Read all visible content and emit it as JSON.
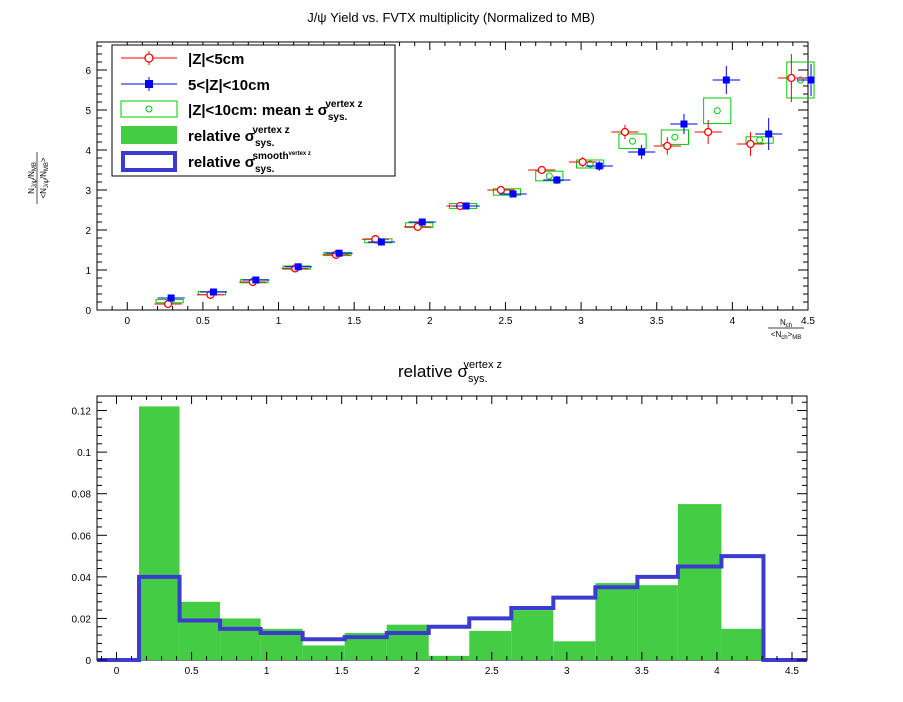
{
  "chart_data": [
    {
      "type": "scatter",
      "title": "J/ψ Yield vs. FVTX multiplicity (Normalized to MB)",
      "xlabel": "N_ch / <N_ch>_MB",
      "ylabel": "(N_J/ψ / N_MB) / <N_J/ψ / N_MB>",
      "xlim": [
        -0.2,
        4.5
      ],
      "ylim": [
        0,
        6.7
      ],
      "xticks": [
        0,
        0.5,
        1,
        1.5,
        2,
        2.5,
        3,
        3.5,
        4,
        4.5
      ],
      "yticks": [
        0,
        1,
        2,
        3,
        4,
        5,
        6
      ],
      "legend_position": "top-left",
      "legend": [
        {
          "label": "|Z|<5cm",
          "marker": "open-circle",
          "color": "#ff0000"
        },
        {
          "label": "5<|Z|<10cm",
          "marker": "filled-square",
          "color": "#0000ff"
        },
        {
          "label": "|Z|<10cm: mean ± σ",
          "sup": "vertex z",
          "sub": "sys.",
          "marker": "open-box",
          "color": "#00cc00"
        },
        {
          "label": "relative σ",
          "sup": "vertex z",
          "sub": "sys.",
          "marker": "filled-box",
          "color": "#44cc44"
        },
        {
          "label": "relative σ",
          "sup": "smooth",
          "supsup": "vertex z",
          "sub": "sys.",
          "marker": "hollow-box",
          "color": "#3b3bcf"
        }
      ],
      "series": [
        {
          "name": "|Z|<5cm",
          "color": "#ff0000",
          "points": [
            {
              "x": 0.27,
              "y": 0.15,
              "xerr": 0.09,
              "yerr": 0.1
            },
            {
              "x": 0.55,
              "y": 0.38,
              "xerr": 0.09,
              "yerr": 0.05
            },
            {
              "x": 0.83,
              "y": 0.7,
              "xerr": 0.09,
              "yerr": 0.05
            },
            {
              "x": 1.11,
              "y": 1.04,
              "xerr": 0.09,
              "yerr": 0.05
            },
            {
              "x": 1.38,
              "y": 1.38,
              "xerr": 0.09,
              "yerr": 0.05
            },
            {
              "x": 1.64,
              "y": 1.77,
              "xerr": 0.09,
              "yerr": 0.06
            },
            {
              "x": 1.92,
              "y": 2.08,
              "xerr": 0.09,
              "yerr": 0.06
            },
            {
              "x": 2.2,
              "y": 2.6,
              "xerr": 0.09,
              "yerr": 0.07
            },
            {
              "x": 2.47,
              "y": 3.0,
              "xerr": 0.09,
              "yerr": 0.08
            },
            {
              "x": 2.74,
              "y": 3.5,
              "xerr": 0.09,
              "yerr": 0.1
            },
            {
              "x": 3.01,
              "y": 3.7,
              "xerr": 0.09,
              "yerr": 0.12
            },
            {
              "x": 3.29,
              "y": 4.45,
              "xerr": 0.09,
              "yerr": 0.18
            },
            {
              "x": 3.57,
              "y": 4.1,
              "xerr": 0.09,
              "yerr": 0.22
            },
            {
              "x": 3.84,
              "y": 4.45,
              "xerr": 0.09,
              "yerr": 0.3
            },
            {
              "x": 4.12,
              "y": 4.15,
              "xerr": 0.09,
              "yerr": 0.3
            },
            {
              "x": 4.39,
              "y": 5.8,
              "xerr": 0.09,
              "yerr": 0.6
            }
          ]
        },
        {
          "name": "5<|Z|<10cm",
          "color": "#0000ff",
          "points": [
            {
              "x": 0.29,
              "y": 0.3,
              "xerr": 0.09,
              "yerr": 0.06
            },
            {
              "x": 0.57,
              "y": 0.45,
              "xerr": 0.09,
              "yerr": 0.05
            },
            {
              "x": 0.85,
              "y": 0.75,
              "xerr": 0.09,
              "yerr": 0.05
            },
            {
              "x": 1.13,
              "y": 1.08,
              "xerr": 0.09,
              "yerr": 0.05
            },
            {
              "x": 1.4,
              "y": 1.42,
              "xerr": 0.09,
              "yerr": 0.05
            },
            {
              "x": 1.68,
              "y": 1.7,
              "xerr": 0.09,
              "yerr": 0.06
            },
            {
              "x": 1.95,
              "y": 2.2,
              "xerr": 0.09,
              "yerr": 0.06
            },
            {
              "x": 2.24,
              "y": 2.6,
              "xerr": 0.09,
              "yerr": 0.07
            },
            {
              "x": 2.55,
              "y": 2.9,
              "xerr": 0.09,
              "yerr": 0.08
            },
            {
              "x": 2.84,
              "y": 3.25,
              "xerr": 0.09,
              "yerr": 0.1
            },
            {
              "x": 3.12,
              "y": 3.6,
              "xerr": 0.09,
              "yerr": 0.12
            },
            {
              "x": 3.4,
              "y": 3.95,
              "xerr": 0.09,
              "yerr": 0.18
            },
            {
              "x": 3.68,
              "y": 4.65,
              "xerr": 0.09,
              "yerr": 0.25
            },
            {
              "x": 3.96,
              "y": 5.75,
              "xerr": 0.09,
              "yerr": 0.35
            },
            {
              "x": 4.24,
              "y": 4.4,
              "xerr": 0.09,
              "yerr": 0.4
            },
            {
              "x": 4.52,
              "y": 5.75,
              "xerr": 0.09,
              "yerr": 0.4
            }
          ]
        },
        {
          "name": "|Z|<10cm: mean ± σ sys. vertex z",
          "color": "#00cc00",
          "points": [
            {
              "x": 0.28,
              "y": 0.22,
              "xerr": 0.09,
              "yerr": 0.04
            },
            {
              "x": 0.56,
              "y": 0.42,
              "xerr": 0.09,
              "yerr": 0.04
            },
            {
              "x": 0.84,
              "y": 0.72,
              "xerr": 0.09,
              "yerr": 0.04
            },
            {
              "x": 1.12,
              "y": 1.06,
              "xerr": 0.09,
              "yerr": 0.04
            },
            {
              "x": 1.39,
              "y": 1.4,
              "xerr": 0.09,
              "yerr": 0.04
            },
            {
              "x": 1.66,
              "y": 1.73,
              "xerr": 0.09,
              "yerr": 0.05
            },
            {
              "x": 1.93,
              "y": 2.12,
              "xerr": 0.09,
              "yerr": 0.06
            },
            {
              "x": 2.22,
              "y": 2.6,
              "xerr": 0.09,
              "yerr": 0.06
            },
            {
              "x": 2.51,
              "y": 2.95,
              "xerr": 0.09,
              "yerr": 0.08
            },
            {
              "x": 2.79,
              "y": 3.35,
              "xerr": 0.09,
              "yerr": 0.12
            },
            {
              "x": 3.06,
              "y": 3.65,
              "xerr": 0.09,
              "yerr": 0.1
            },
            {
              "x": 3.34,
              "y": 4.22,
              "xerr": 0.09,
              "yerr": 0.18
            },
            {
              "x": 3.62,
              "y": 4.32,
              "xerr": 0.09,
              "yerr": 0.18
            },
            {
              "x": 3.9,
              "y": 4.98,
              "xerr": 0.09,
              "yerr": 0.32
            },
            {
              "x": 4.18,
              "y": 4.25,
              "xerr": 0.09,
              "yerr": 0.08
            },
            {
              "x": 4.45,
              "y": 5.75,
              "xerr": 0.09,
              "yerr": 0.45
            }
          ]
        }
      ]
    },
    {
      "type": "histogram",
      "title": "relative σ",
      "title_sup": "vertex z",
      "title_sub": "sys.",
      "xlim": [
        -0.13,
        4.6
      ],
      "ylim": [
        0,
        0.127
      ],
      "xticks": [
        0,
        0.5,
        1,
        1.5,
        2,
        2.5,
        3,
        3.5,
        4,
        4.5
      ],
      "yticks": [
        0,
        0.02,
        0.04,
        0.06,
        0.08,
        0.1,
        0.12
      ],
      "ytick_labels": [
        "0",
        "0.02",
        "0.04",
        "0.06",
        "0.08",
        "0.1",
        "0.12"
      ],
      "bin_edges": [
        -0.13,
        0.15,
        0.42,
        0.69,
        0.96,
        1.24,
        1.52,
        1.8,
        2.08,
        2.35,
        2.63,
        2.91,
        3.19,
        3.47,
        3.74,
        4.03,
        4.31,
        4.6
      ],
      "series": [
        {
          "name": "relative σ sys. vertex z",
          "color": "#44cc44",
          "values": [
            0,
            0.122,
            0.028,
            0.02,
            0.015,
            0.007,
            0.013,
            0.017,
            0.002,
            0.014,
            0.024,
            0.009,
            0.037,
            0.036,
            0.075,
            0.015,
            0
          ]
        },
        {
          "name": "relative σ sys. smooth vertex z",
          "color": "#3b3bcf",
          "values": [
            0,
            0.04,
            0.019,
            0.015,
            0.013,
            0.01,
            0.011,
            0.013,
            0.016,
            0.02,
            0.025,
            0.03,
            0.035,
            0.04,
            0.045,
            0.05,
            0
          ]
        }
      ]
    }
  ]
}
